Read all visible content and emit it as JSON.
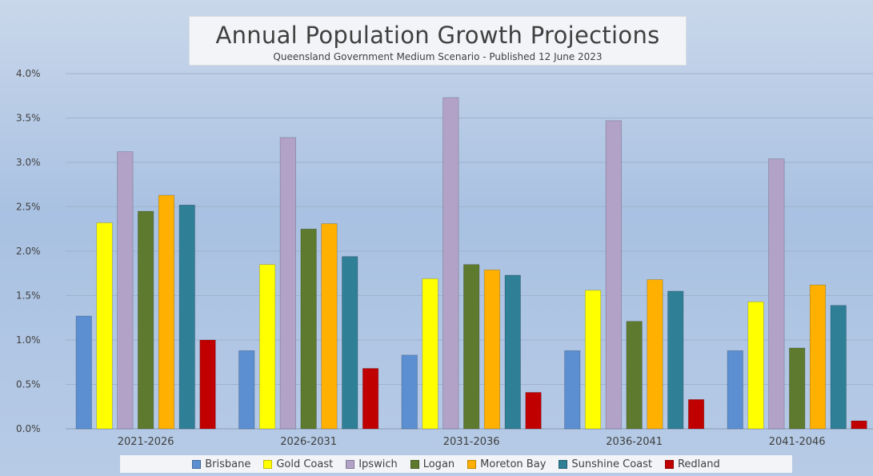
{
  "chart_data": {
    "type": "bar",
    "title": "Annual Population Growth Projections",
    "subtitle": "Queensland Government Medium Scenario - Published 12 June 2023",
    "categories": [
      "2021-2026",
      "2026-2031",
      "2031-2036",
      "2036-2041",
      "2041-2046"
    ],
    "yticks": [
      "0.0%",
      "0.5%",
      "1.0%",
      "1.5%",
      "2.0%",
      "2.5%",
      "3.0%",
      "3.5%",
      "4.0%"
    ],
    "ylim": [
      0,
      4.0
    ],
    "grid": true,
    "legend_position": "bottom",
    "series": [
      {
        "name": "Brisbane",
        "color": "#5b8fd1",
        "values": [
          1.27,
          0.88,
          0.83,
          0.88,
          0.88
        ]
      },
      {
        "name": "Gold Coast",
        "color": "#ffff00",
        "values": [
          2.32,
          1.85,
          1.69,
          1.56,
          1.43
        ]
      },
      {
        "name": "Ipswich",
        "color": "#b3a2c7",
        "values": [
          3.12,
          3.28,
          3.73,
          3.47,
          3.04
        ]
      },
      {
        "name": "Logan",
        "color": "#5e7a2e",
        "values": [
          2.45,
          2.25,
          1.85,
          1.21,
          0.91
        ]
      },
      {
        "name": "Moreton Bay",
        "color": "#ffb000",
        "values": [
          2.63,
          2.31,
          1.79,
          1.68,
          1.62
        ]
      },
      {
        "name": "Sunshine Coast",
        "color": "#2f7f97",
        "values": [
          2.52,
          1.94,
          1.73,
          1.55,
          1.39
        ]
      },
      {
        "name": "Redland",
        "color": "#c00000",
        "values": [
          1.0,
          0.68,
          0.41,
          0.33,
          0.09
        ]
      }
    ]
  }
}
